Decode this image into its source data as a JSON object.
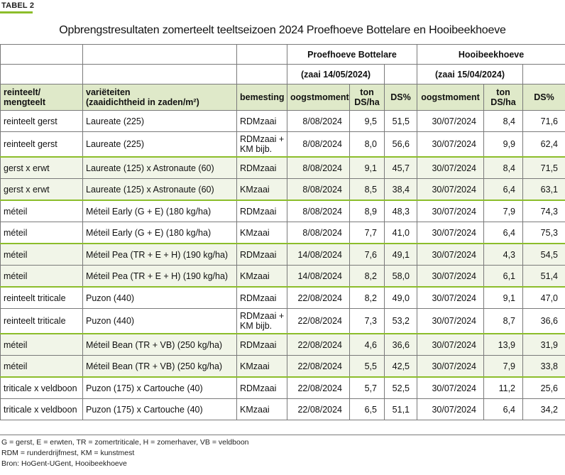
{
  "tag": "TABEL 2",
  "title": "Opbrengstresultaten zomerteelt teeltseizoen 2024 Proefhoeve Bottelare en Hooibeekhoeve",
  "groups": [
    {
      "name": "Proefhoeve Bottelare",
      "sowing": "(zaai  14/05/2024)"
    },
    {
      "name": "Hooibeekhoeve",
      "sowing": "(zaai 15/04/2024)"
    }
  ],
  "headers": {
    "col1_line1": "reinteelt/",
    "col1_line2": "mengteelt",
    "col2_line1": "variëteiten",
    "col2_line2": "(zaaidichtheid in zaden/m²)",
    "col3": "bemesting",
    "b_date": "oogstmoment",
    "b_ton_line1": "ton",
    "b_ton_line2": "DS/ha",
    "b_ds": "DS%",
    "h_date": "oogstmoment",
    "h_ton_line1": "ton",
    "h_ton_line2": "DS/ha",
    "h_ds": "DS%"
  },
  "rows": [
    {
      "teelt": "reinteelt gerst",
      "variety": "Laureate (225)",
      "fert": "RDMzaai",
      "fert2": "",
      "b_date": "8/08/2024",
      "b_ton": "9,5",
      "b_ds": "51,5",
      "h_date": "30/07/2024",
      "h_ton": "8,4",
      "h_ds": "71,6"
    },
    {
      "teelt": "reinteelt gerst",
      "variety": "Laureate (225)",
      "fert": "RDMzaai +",
      "fert2": "KM bijb.",
      "b_date": "8/08/2024",
      "b_ton": "8,0",
      "b_ds": "56,6",
      "h_date": "30/07/2024",
      "h_ton": "9,9",
      "h_ds": "62,4"
    },
    {
      "teelt": "gerst x erwt",
      "variety": "Laureate (125) x Astronaute (60)",
      "fert": "RDMzaai",
      "fert2": "",
      "b_date": "8/08/2024",
      "b_ton": "9,1",
      "b_ds": "45,7",
      "h_date": "30/07/2024",
      "h_ton": "8,4",
      "h_ds": "71,5"
    },
    {
      "teelt": "gerst x erwt",
      "variety": "Laureate (125) x Astronaute (60)",
      "fert": "KMzaai",
      "fert2": "",
      "b_date": "8/08/2024",
      "b_ton": "8,5",
      "b_ds": "38,4",
      "h_date": "30/07/2024",
      "h_ton": "6,4",
      "h_ds": "63,1"
    },
    {
      "teelt": "méteil",
      "variety": "Méteil Early (G + E) (180 kg/ha)",
      "fert": "RDMzaai",
      "fert2": "",
      "b_date": "8/08/2024",
      "b_ton": "8,9",
      "b_ds": "48,3",
      "h_date": "30/07/2024",
      "h_ton": "7,9",
      "h_ds": "74,3"
    },
    {
      "teelt": "méteil",
      "variety": "Méteil Early (G + E) (180 kg/ha)",
      "fert": "KMzaai",
      "fert2": "",
      "b_date": "8/08/2024",
      "b_ton": "7,7",
      "b_ds": "41,0",
      "h_date": "30/07/2024",
      "h_ton": "6,4",
      "h_ds": "75,3"
    },
    {
      "teelt": "méteil",
      "variety": "Méteil Pea (TR + E + H) (190 kg/ha)",
      "fert": "RDMzaai",
      "fert2": "",
      "b_date": "14/08/2024",
      "b_ton": "7,6",
      "b_ds": "49,1",
      "h_date": "30/07/2024",
      "h_ton": "4,3",
      "h_ds": "54,5"
    },
    {
      "teelt": "méteil",
      "variety": "Méteil Pea (TR + E + H) (190 kg/ha)",
      "fert": "KMzaai",
      "fert2": "",
      "b_date": "14/08/2024",
      "b_ton": "8,2",
      "b_ds": "58,0",
      "h_date": "30/07/2024",
      "h_ton": "6,1",
      "h_ds": "51,4"
    },
    {
      "teelt": "reinteelt triticale",
      "variety": "Puzon (440)",
      "fert": "RDMzaai",
      "fert2": "",
      "b_date": "22/08/2024",
      "b_ton": "8,2",
      "b_ds": "49,0",
      "h_date": "30/07/2024",
      "h_ton": "9,1",
      "h_ds": "47,0"
    },
    {
      "teelt": "reinteelt triticale",
      "variety": "Puzon (440)",
      "fert": "RDMzaai +",
      "fert2": "KM bijb.",
      "b_date": "22/08/2024",
      "b_ton": "7,3",
      "b_ds": "53,2",
      "h_date": "30/07/2024",
      "h_ton": "8,7",
      "h_ds": "36,6"
    },
    {
      "teelt": "méteil",
      "variety": "Méteil Bean (TR + VB) (250 kg/ha)",
      "fert": "RDMzaai",
      "fert2": "",
      "b_date": "22/08/2024",
      "b_ton": "4,6",
      "b_ds": "36,6",
      "h_date": "30/07/2024",
      "h_ton": "13,9",
      "h_ds": "31,9"
    },
    {
      "teelt": "méteil",
      "variety": "Méteil Bean (TR + VB) (250 kg/ha)",
      "fert": "KMzaai",
      "fert2": "",
      "b_date": "22/08/2024",
      "b_ton": "5,5",
      "b_ds": "42,5",
      "h_date": "30/07/2024",
      "h_ton": "7,9",
      "h_ds": "33,8"
    },
    {
      "teelt": "triticale x veldboon",
      "variety": "Puzon (175) x Cartouche (40)",
      "fert": "RDMzaai",
      "fert2": "",
      "b_date": "22/08/2024",
      "b_ton": "5,7",
      "b_ds": "52,5",
      "h_date": "30/07/2024",
      "h_ton": "11,2",
      "h_ds": "25,6"
    },
    {
      "teelt": "triticale x veldboon",
      "variety": "Puzon (175) x Cartouche (40)",
      "fert": "KMzaai",
      "fert2": "",
      "b_date": "22/08/2024",
      "b_ton": "6,5",
      "b_ds": "51,1",
      "h_date": "30/07/2024",
      "h_ton": "6,4",
      "h_ds": "34,2"
    }
  ],
  "notes": [
    "G = gerst, E = erwten, TR = zomertriticale, H = zomerhaver, VB = veldboon",
    "RDM = runderdrijfmest, KM = kunstmest",
    "Bron: HoGent-UGent, Hooibeekhoeve"
  ],
  "colors": {
    "accent": "#8cbd2b",
    "header_fill": "#dfe9c9",
    "alt_fill": "#f1f5e8"
  }
}
